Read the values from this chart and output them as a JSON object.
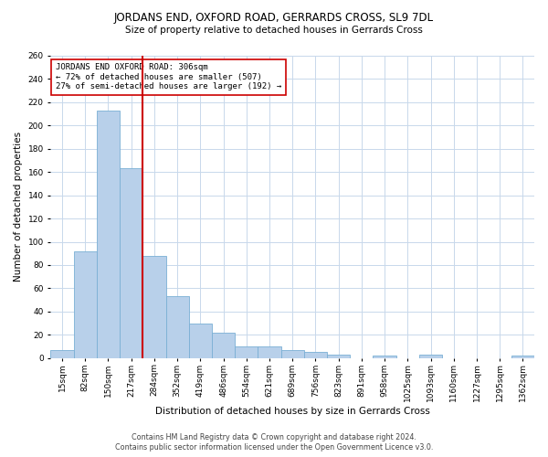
{
  "title1": "JORDANS END, OXFORD ROAD, GERRARDS CROSS, SL9 7DL",
  "title2": "Size of property relative to detached houses in Gerrards Cross",
  "xlabel": "Distribution of detached houses by size in Gerrards Cross",
  "ylabel": "Number of detached properties",
  "footnote1": "Contains HM Land Registry data © Crown copyright and database right 2024.",
  "footnote2": "Contains public sector information licensed under the Open Government Licence v3.0.",
  "annotation_line1": "JORDANS END OXFORD ROAD: 306sqm",
  "annotation_line2": "← 72% of detached houses are smaller (507)",
  "annotation_line3": "27% of semi-detached houses are larger (192) →",
  "vline_index": 4,
  "categories": [
    "15sqm",
    "82sqm",
    "150sqm",
    "217sqm",
    "284sqm",
    "352sqm",
    "419sqm",
    "486sqm",
    "554sqm",
    "621sqm",
    "689sqm",
    "756sqm",
    "823sqm",
    "891sqm",
    "958sqm",
    "1025sqm",
    "1093sqm",
    "1160sqm",
    "1227sqm",
    "1295sqm",
    "1362sqm"
  ],
  "values": [
    7,
    92,
    213,
    163,
    88,
    53,
    30,
    22,
    10,
    10,
    7,
    5,
    3,
    0,
    2,
    0,
    3,
    0,
    0,
    0,
    2
  ],
  "bar_color": "#b8d0ea",
  "bar_edgecolor": "#7aafd4",
  "vline_color": "#cc0000",
  "bg_color": "#ffffff",
  "grid_color": "#c8d8eb",
  "ylim": [
    0,
    260
  ],
  "yticks": [
    0,
    20,
    40,
    60,
    80,
    100,
    120,
    140,
    160,
    180,
    200,
    220,
    240,
    260
  ],
  "title1_fontsize": 8.5,
  "title2_fontsize": 7.5,
  "xlabel_fontsize": 7.5,
  "ylabel_fontsize": 7.5,
  "tick_fontsize": 6.5,
  "footnote_fontsize": 5.8,
  "annotation_fontsize": 6.5
}
